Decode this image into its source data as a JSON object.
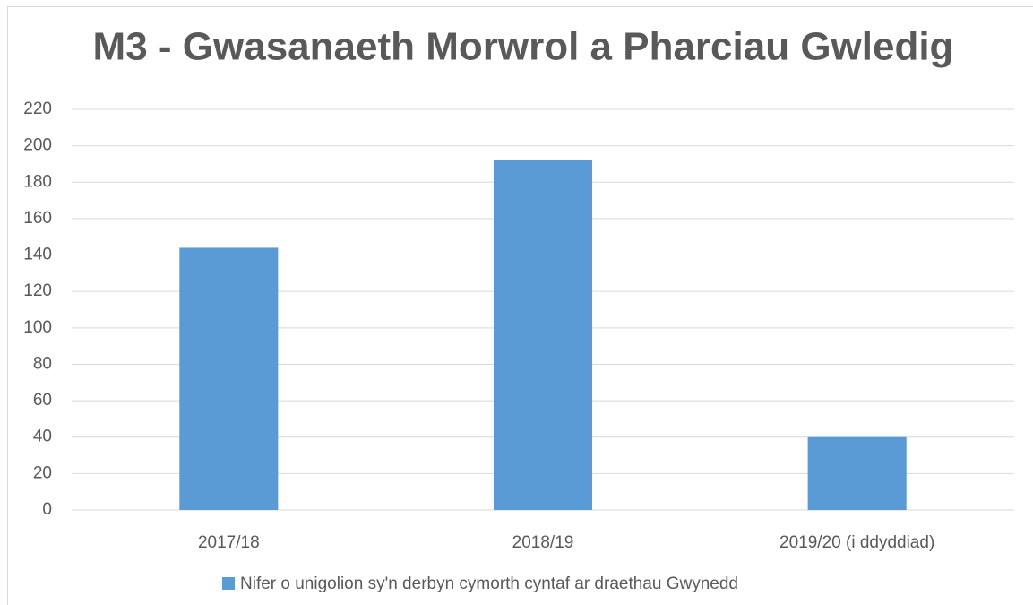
{
  "chart_data": {
    "type": "bar",
    "title": "M3 - Gwasanaeth Morwrol a Pharciau Gwledig",
    "categories": [
      "2017/18",
      "2018/19",
      "2019/20 (i ddyddiad)"
    ],
    "series": [
      {
        "name": "Nifer o unigolion sy'n derbyn cymorth cyntaf ar draethau Gwynedd",
        "color": "#5b9bd5",
        "values": [
          144,
          192,
          40
        ]
      }
    ],
    "ylim": [
      0,
      220
    ],
    "yticks": [
      0,
      20,
      40,
      60,
      80,
      100,
      120,
      140,
      160,
      180,
      200,
      220
    ],
    "grid": true,
    "legend": "bottom"
  }
}
